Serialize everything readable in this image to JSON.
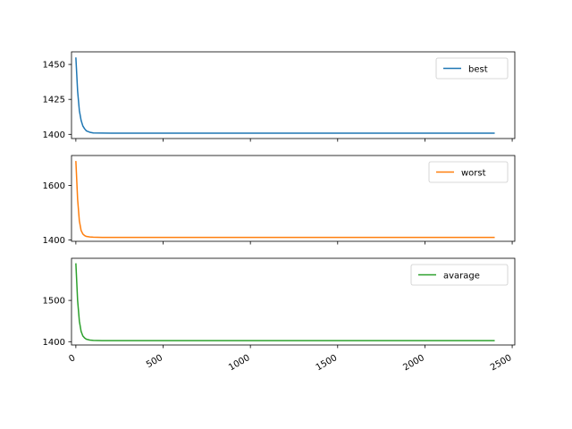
{
  "chart_data": [
    {
      "type": "line",
      "series": [
        {
          "name": "best",
          "color": "#1f77b4",
          "x": [
            0,
            10,
            20,
            30,
            40,
            50,
            60,
            80,
            100,
            150,
            200,
            300,
            500,
            1000,
            1500,
            2000,
            2400
          ],
          "values": [
            1455,
            1431,
            1417,
            1410,
            1406,
            1404,
            1402.5,
            1401.5,
            1401,
            1400.9,
            1400.8,
            1400.8,
            1400.8,
            1400.8,
            1400.8,
            1400.8,
            1400.8
          ]
        }
      ],
      "ylim": [
        1397,
        1459
      ],
      "yticks": [
        1400,
        1425,
        1450
      ],
      "legend": "upper right"
    },
    {
      "type": "line",
      "series": [
        {
          "name": "worst",
          "color": "#ff7f0e",
          "x": [
            0,
            10,
            20,
            30,
            40,
            50,
            60,
            80,
            100,
            150,
            200,
            300,
            500,
            1000,
            1500,
            2000,
            2400
          ],
          "values": [
            1690,
            1550,
            1470,
            1435,
            1422,
            1416,
            1413,
            1411,
            1410,
            1409.5,
            1409.5,
            1409.5,
            1409.5,
            1409.5,
            1409.5,
            1409.5,
            1409.5
          ]
        }
      ],
      "ylim": [
        1395,
        1710
      ],
      "yticks": [
        1400,
        1600
      ],
      "legend": "upper right"
    },
    {
      "type": "line",
      "series": [
        {
          "name": "avarage",
          "color": "#2ca02c",
          "x": [
            0,
            10,
            20,
            30,
            40,
            50,
            60,
            80,
            100,
            150,
            200,
            300,
            500,
            1000,
            1500,
            2000,
            2400
          ],
          "values": [
            1590,
            1500,
            1450,
            1425,
            1414,
            1409,
            1406,
            1404,
            1403,
            1402.5,
            1402.5,
            1402.5,
            1402.5,
            1402.5,
            1402.5,
            1402.5,
            1402.5
          ]
        }
      ],
      "ylim": [
        1392,
        1602
      ],
      "yticks": [
        1400,
        1500
      ],
      "legend": "upper right"
    }
  ],
  "shared_x": {
    "xlim": [
      -25,
      2515
    ],
    "xticks": [
      0,
      500,
      1000,
      1500,
      2000,
      2500
    ],
    "tick_labels": [
      "0",
      "500",
      "1000",
      "1500",
      "2000",
      "2500"
    ],
    "tick_label_rotation": 30
  }
}
